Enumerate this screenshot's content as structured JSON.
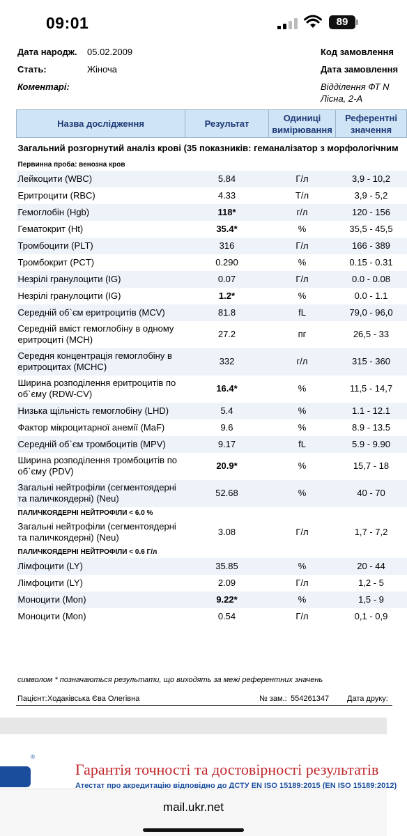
{
  "status_bar": {
    "time": "09:01",
    "battery": "89"
  },
  "header": {
    "dob_label": "Дата народж.",
    "dob_value": "05.02.2009",
    "sex_label": "Стать:",
    "sex_value": "Жіноча",
    "comments_label": "Коментарі:",
    "order_code_label": "Код замовлення",
    "order_date_label": "Дата замовлення",
    "department_line1": "Відділення ФТ N",
    "department_line2": "Лісна, 2-А"
  },
  "table": {
    "columns": [
      "Назва дослідження",
      "Результат",
      "Одиниці вимірювання",
      "Референтні значення"
    ],
    "section_title": "Загальний розгорнутий аналіз крові (35 показників: геманалізатор з морфологічним",
    "sample_note": "Первинна проба: венозна кров",
    "rows": [
      {
        "name": "Лейкоцити (WBC)",
        "result": "5.84",
        "unit": "Г/л",
        "ref": "3,9 - 10,2",
        "flag": false
      },
      {
        "name": "Еритроцити (RBC)",
        "result": "4.33",
        "unit": "Т/л",
        "ref": "3,9 - 5,2",
        "flag": false
      },
      {
        "name": "Гемоглобін (Hgb)",
        "result": "118*",
        "unit": "г/л",
        "ref": "120 - 156",
        "flag": true
      },
      {
        "name": "Гематокрит (Ht)",
        "result": "35.4*",
        "unit": "%",
        "ref": "35,5 - 45,5",
        "flag": true
      },
      {
        "name": "Тромбоцити (PLT)",
        "result": "316",
        "unit": "Г/л",
        "ref": "166 - 389",
        "flag": false
      },
      {
        "name": "Тромбокрит (PCT)",
        "result": "0.290",
        "unit": "%",
        "ref": "0.15 - 0.31",
        "flag": false
      },
      {
        "name": "Незрілі гранулоцити (IG)",
        "result": "0.07",
        "unit": "Г/л",
        "ref": "0.0 - 0.08",
        "flag": false
      },
      {
        "name": "Незрілі гранулоцити (IG)",
        "result": "1.2*",
        "unit": "%",
        "ref": "0.0 - 1.1",
        "flag": true
      },
      {
        "name": "Середній об`єм еритроцитів (MCV)",
        "result": "81.8",
        "unit": "fL",
        "ref": "79,0 - 96,0",
        "flag": false
      },
      {
        "name": "Середній вміст гемоглобіну в одному еритроциті (MCH)",
        "result": "27.2",
        "unit": "пг",
        "ref": "26,5 - 33",
        "flag": false
      },
      {
        "name": "Середня концентрація гемоглобіну в еритроцитах (MCHC)",
        "result": "332",
        "unit": "г/л",
        "ref": "315 - 360",
        "flag": false
      },
      {
        "name": "Ширина розподілення еритроцитів по об`єму (RDW-CV)",
        "result": "16.4*",
        "unit": "%",
        "ref": "11,5 - 14,7",
        "flag": true
      },
      {
        "name": "Низька щільність гемоглобіну (LHD)",
        "result": "5.4",
        "unit": "%",
        "ref": "1.1 - 12.1",
        "flag": false
      },
      {
        "name": "Фактор мікроцитарної анемії (MaF)",
        "result": "9.6",
        "unit": "%",
        "ref": "8.9 - 13.5",
        "flag": false
      },
      {
        "name": "Середній об`єм тромбоцитів (MPV)",
        "result": "9.17",
        "unit": "fL",
        "ref": "5.9 - 9.90",
        "flag": false
      },
      {
        "name": "Ширина розподілення тромбоцитів по об`єму (PDV)",
        "result": "20.9*",
        "unit": "%",
        "ref": "15,7 - 18",
        "flag": true
      },
      {
        "name": "Загальні нейтрофіли (сегментоядерні та паличкоядерні) (Neu)",
        "result": "52.68",
        "unit": "%",
        "ref": "40 - 70",
        "flag": false,
        "note": "ПАЛИЧКОЯДЕРНІ НЕЙТРОФІЛИ < 6.0 %"
      },
      {
        "name": "Загальні нейтрофіли (сегментоядерні та паличкоядерні) (Neu)",
        "result": "3.08",
        "unit": "Г/л",
        "ref": "1,7 - 7,2",
        "flag": false,
        "note": "ПАЛИЧКОЯДЕРНІ НЕЙТРОФІЛИ < 0.6 Г/л"
      },
      {
        "name": "Лімфоцити (LY)",
        "result": "35.85",
        "unit": "%",
        "ref": "20 - 44",
        "flag": false
      },
      {
        "name": "Лімфоцити (LY)",
        "result": "2.09",
        "unit": "Г/л",
        "ref": "1,2 - 5",
        "flag": false
      },
      {
        "name": "Моноцити (Mon)",
        "result": "9.22*",
        "unit": "%",
        "ref": "1,5 - 9",
        "flag": true
      },
      {
        "name": "Моноцити (Mon)",
        "result": "0.54",
        "unit": "Г/л",
        "ref": "0,1 - 0,9",
        "flag": false
      }
    ]
  },
  "footnote": "символом * позначаються результати, що виходять за межі референтних значень",
  "patient_label": "Пацієнт:",
  "patient_name": "Ходаківська Єва Олегівна",
  "order_no_label": "№ зам.:",
  "order_no": "554261347",
  "print_date_label": "Дата друку:",
  "page2": {
    "guarantee": "Гарантія точності та достовірності результатів",
    "atest": "Атестат про акредитацію відповідно до ДСТУ EN ISO 15189:2015 (EN ISO 15189:2012)",
    "reg_mark": "®"
  },
  "browser": {
    "url": "mail.ukr.net"
  }
}
